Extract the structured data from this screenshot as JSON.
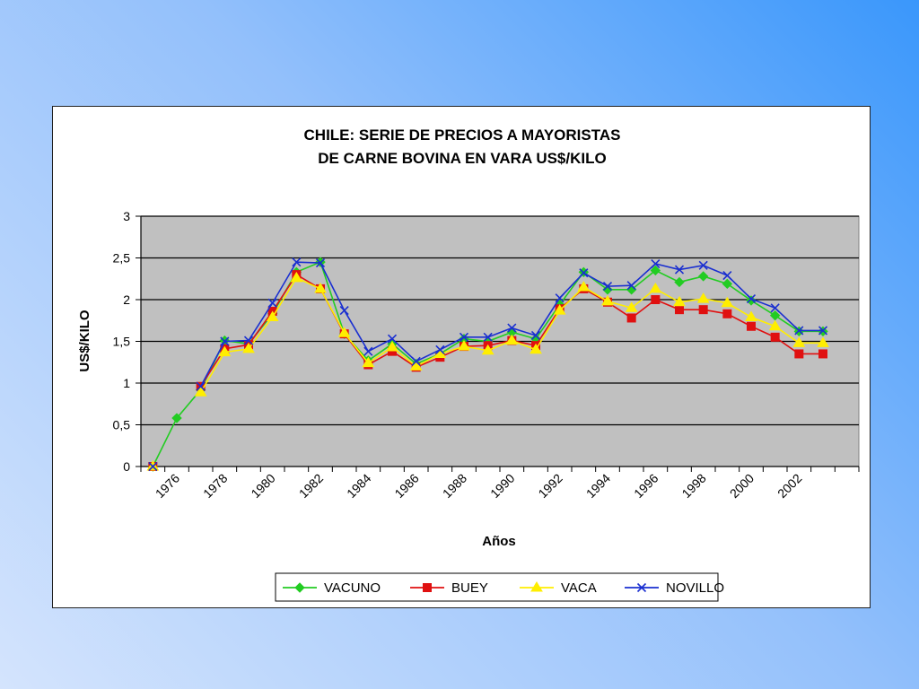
{
  "chart_data": {
    "type": "line",
    "title_lines": [
      "CHILE: SERIE DE PRECIOS A MAYORISTAS",
      "DE CARNE BOVINA  EN VARA  US$/KILO"
    ],
    "xlabel": "Años",
    "ylabel": "US$/KILO",
    "ylim": [
      0,
      3
    ],
    "y_ticks": [
      "0",
      "0,5",
      "1",
      "1,5",
      "2",
      "2,5",
      "3"
    ],
    "y_tick_values": [
      0,
      0.5,
      1,
      1.5,
      2,
      2.5,
      3
    ],
    "x": [
      1975,
      1976,
      1977,
      1978,
      1979,
      1980,
      1981,
      1982,
      1983,
      1984,
      1985,
      1986,
      1987,
      1988,
      1989,
      1990,
      1991,
      1992,
      1993,
      1994,
      1995,
      1996,
      1997,
      1998,
      1999,
      2000,
      2001,
      2002,
      2003,
      2004
    ],
    "x_tick_labels": [
      "",
      "1976",
      "",
      "1978",
      "",
      "1980",
      "",
      "1982",
      "",
      "1984",
      "",
      "1986",
      "",
      "1988",
      "",
      "1990",
      "",
      "1992",
      "",
      "1994",
      "",
      "1996",
      "",
      "1998",
      "",
      "2000",
      "",
      "2002",
      "",
      ""
    ],
    "grid": true,
    "legend_position": "bottom",
    "series": [
      {
        "name": "VACUNO",
        "color": "#22cc22",
        "marker": "diamond-marker",
        "values": [
          0,
          0.58,
          0.92,
          1.51,
          1.47,
          1.83,
          2.33,
          2.45,
          1.59,
          1.27,
          1.47,
          1.23,
          1.35,
          1.53,
          1.5,
          1.61,
          1.53,
          1.94,
          2.33,
          2.12,
          2.12,
          2.35,
          2.21,
          2.28,
          2.19,
          1.99,
          1.81,
          1.62,
          1.62,
          null
        ]
      },
      {
        "name": "BUEY",
        "color": "#e01010",
        "marker": "square-marker",
        "values": [
          0,
          null,
          0.96,
          1.41,
          1.46,
          1.86,
          2.3,
          2.13,
          1.59,
          1.22,
          1.38,
          1.19,
          1.31,
          1.44,
          1.45,
          1.51,
          1.45,
          1.89,
          2.13,
          1.97,
          1.78,
          2.0,
          1.88,
          1.88,
          1.83,
          1.68,
          1.55,
          1.35,
          1.35,
          null
        ]
      },
      {
        "name": "VACA",
        "color": "#ffee00",
        "marker": "triangle-marker",
        "values": [
          0,
          null,
          0.89,
          1.37,
          1.41,
          1.79,
          2.26,
          2.13,
          1.6,
          1.24,
          1.43,
          1.2,
          1.35,
          1.44,
          1.39,
          1.51,
          1.4,
          1.87,
          2.15,
          1.98,
          1.9,
          2.13,
          1.97,
          2.01,
          1.96,
          1.79,
          1.68,
          1.48,
          1.48,
          null
        ]
      },
      {
        "name": "NOVILLO",
        "color": "#1a2fd0",
        "marker": "x-marker",
        "values": [
          0,
          null,
          0.96,
          1.5,
          1.51,
          1.96,
          2.45,
          2.44,
          1.87,
          1.38,
          1.53,
          1.26,
          1.4,
          1.55,
          1.55,
          1.66,
          1.57,
          2.02,
          2.32,
          2.16,
          2.17,
          2.43,
          2.36,
          2.41,
          2.29,
          2.01,
          1.9,
          1.63,
          1.63,
          null
        ]
      }
    ]
  }
}
